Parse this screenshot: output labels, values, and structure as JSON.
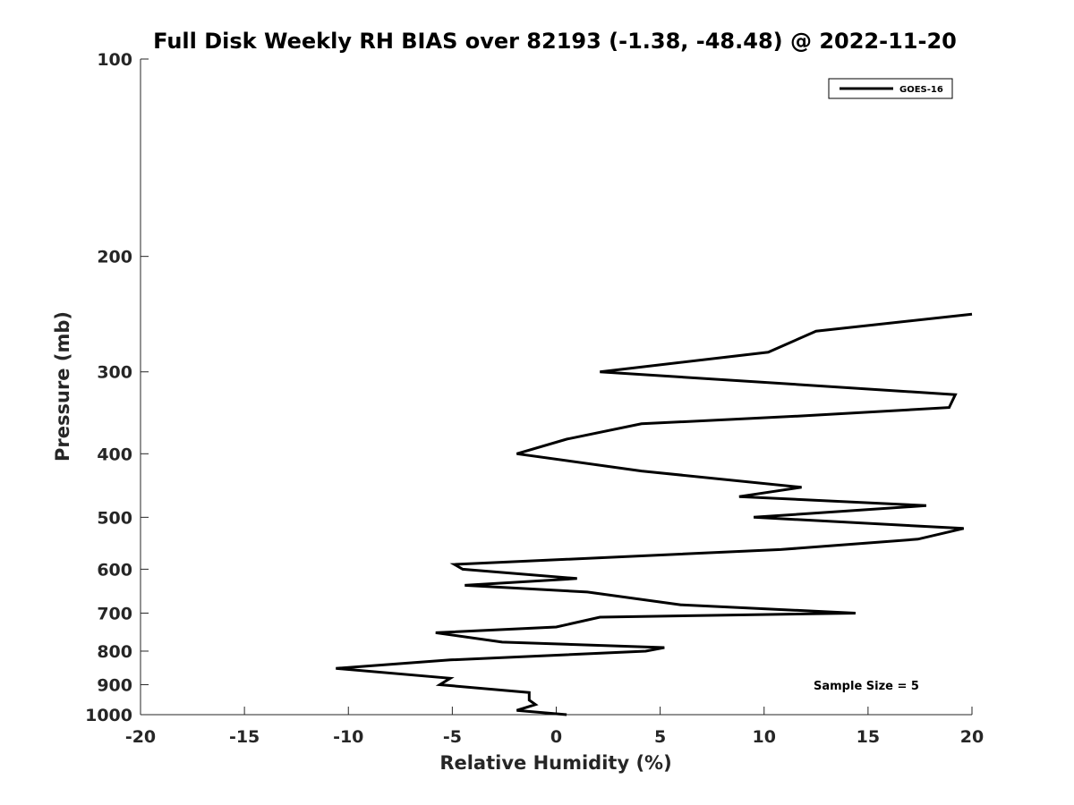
{
  "chart_data": {
    "type": "line",
    "title": "Full Disk Weekly RH BIAS over 82193 (-1.38, -48.48) @ 2022-11-20",
    "xlabel": "Relative Humidity (%)",
    "ylabel": "Pressure (mb)",
    "xlim": [
      -20,
      20
    ],
    "ylim": [
      100,
      1000
    ],
    "yscale": "log",
    "y_reversed": true,
    "grid": false,
    "legend_position": "top-right",
    "x_ticks": [
      "-20",
      "-15",
      "-10",
      "-5",
      "0",
      "5",
      "10",
      "15",
      "20"
    ],
    "y_ticks": [
      "100",
      "200",
      "300",
      "400",
      "500",
      "600",
      "700",
      "800",
      "900",
      "1000"
    ],
    "series": [
      {
        "name": "GOES-16",
        "color": "#000000",
        "points": [
          {
            "x": 0.5,
            "y": 1000
          },
          {
            "x": -1.9,
            "y": 985
          },
          {
            "x": -1.0,
            "y": 965
          },
          {
            "x": -1.3,
            "y": 950
          },
          {
            "x": -1.3,
            "y": 925
          },
          {
            "x": -5.6,
            "y": 900
          },
          {
            "x": -5.1,
            "y": 880
          },
          {
            "x": -10.6,
            "y": 850
          },
          {
            "x": -5.1,
            "y": 825
          },
          {
            "x": 4.3,
            "y": 800
          },
          {
            "x": 5.2,
            "y": 790
          },
          {
            "x": -2.6,
            "y": 775
          },
          {
            "x": -5.8,
            "y": 750
          },
          {
            "x": 0.0,
            "y": 735
          },
          {
            "x": 2.1,
            "y": 710
          },
          {
            "x": 14.4,
            "y": 700
          },
          {
            "x": 6.0,
            "y": 680
          },
          {
            "x": 1.5,
            "y": 650
          },
          {
            "x": -4.4,
            "y": 635
          },
          {
            "x": 1.0,
            "y": 620
          },
          {
            "x": -4.5,
            "y": 600
          },
          {
            "x": -4.9,
            "y": 590
          },
          {
            "x": 10.8,
            "y": 560
          },
          {
            "x": 17.4,
            "y": 540
          },
          {
            "x": 19.6,
            "y": 520
          },
          {
            "x": 9.5,
            "y": 500
          },
          {
            "x": 17.8,
            "y": 480
          },
          {
            "x": 8.8,
            "y": 465
          },
          {
            "x": 11.8,
            "y": 450
          },
          {
            "x": 4.1,
            "y": 425
          },
          {
            "x": -1.9,
            "y": 400
          },
          {
            "x": 0.5,
            "y": 380
          },
          {
            "x": 4.1,
            "y": 360
          },
          {
            "x": 12.0,
            "y": 350
          },
          {
            "x": 18.9,
            "y": 340
          },
          {
            "x": 19.2,
            "y": 325
          },
          {
            "x": 2.1,
            "y": 300
          },
          {
            "x": 10.2,
            "y": 280
          },
          {
            "x": 12.5,
            "y": 260
          },
          {
            "x": 20.0,
            "y": 245
          }
        ]
      }
    ],
    "annotations": [
      "Sample Size = 5"
    ]
  }
}
